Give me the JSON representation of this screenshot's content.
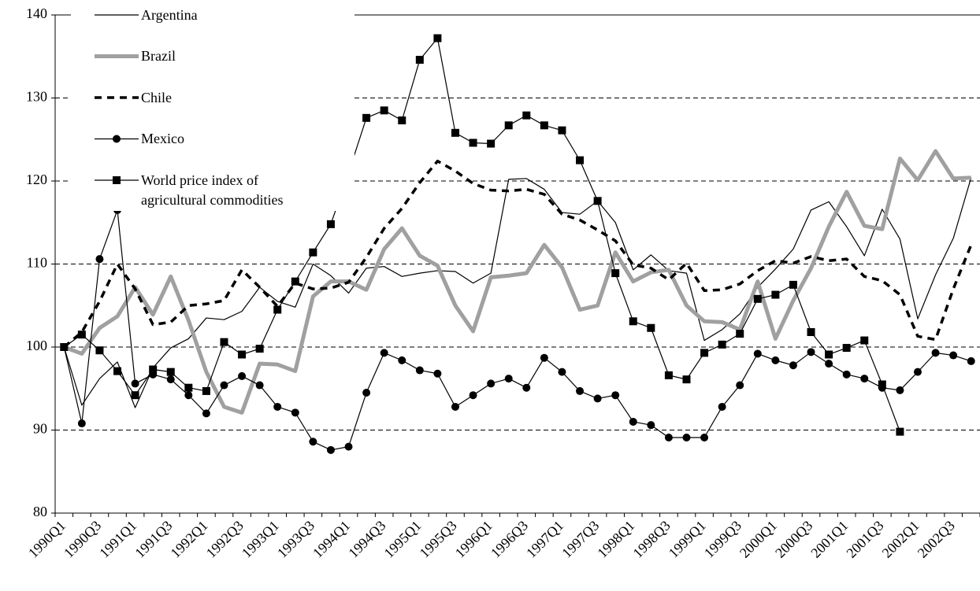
{
  "chart_data": {
    "type": "line",
    "categories": [
      "1990Q1",
      null,
      "1990Q3",
      null,
      "1991Q1",
      null,
      "1991Q3",
      null,
      "1992Q1",
      null,
      "1992Q3",
      null,
      "1993Q1",
      null,
      "1993Q3",
      null,
      "1994Q1",
      null,
      "1994Q3",
      null,
      "1995Q1",
      null,
      "1995Q3",
      null,
      "1996Q1",
      null,
      "1996Q3",
      null,
      "1997Q1",
      null,
      "1997Q3",
      null,
      "1998Q1",
      null,
      "1998Q3",
      null,
      "1999Q1",
      null,
      "1999Q3",
      null,
      "2000Q1",
      null,
      "2000Q3",
      null,
      "2001Q1",
      null,
      "2001Q3",
      null,
      "2002Q1",
      null,
      "2002Q3",
      null
    ],
    "ylim": [
      80,
      140
    ],
    "yticks": [
      80,
      90,
      100,
      110,
      120,
      130,
      140
    ],
    "grid": true,
    "legend": "upper left",
    "series": [
      {
        "name": "Argentina",
        "color": "#000000",
        "width": 1.2,
        "dash": "none",
        "marker": "none",
        "values": [
          100,
          93,
          96.2,
          98.2,
          92.7,
          97.5,
          99.9,
          101,
          103.5,
          103.3,
          104.3,
          107.2,
          105.5,
          104.8,
          110,
          108.6,
          106.5,
          109.5,
          109.7,
          108.5,
          108.9,
          109.2,
          109.1,
          107.7,
          108.9,
          120.2,
          120.3,
          119,
          116.2,
          116,
          117.6,
          115,
          109.3,
          111.1,
          109.2,
          108.9,
          100.8,
          102.1,
          104,
          107.2,
          109.4,
          111.8,
          116.5,
          117.5,
          114.5,
          111,
          116.6,
          113,
          103.4,
          108.7,
          113.1,
          120.4
        ]
      },
      {
        "name": "Brazil",
        "color": "#a0a0a0",
        "width": 5,
        "dash": "none",
        "marker": "none",
        "values": [
          100,
          99.2,
          102.3,
          103.7,
          107.2,
          103.9,
          108.5,
          103.2,
          97,
          92.8,
          92.1,
          98,
          97.9,
          97.1,
          106.1,
          107.9,
          107.9,
          106.9,
          111.8,
          114.3,
          111,
          109.8,
          105,
          101.9,
          108.4,
          108.6,
          108.9,
          112.3,
          109.6,
          104.5,
          105,
          111.4,
          107.9,
          109,
          109.3,
          105,
          103.1,
          103,
          102.1,
          107.9,
          101,
          105.6,
          109.5,
          114.5,
          118.7,
          114.6,
          114.2,
          122.7,
          120.1,
          123.6,
          120.3,
          120.4
        ]
      },
      {
        "name": "Chile",
        "color": "#000000",
        "width": 3.5,
        "dash": "9 7",
        "marker": "none",
        "values": [
          100,
          101.8,
          105.5,
          110,
          107,
          102.7,
          103,
          105,
          105.2,
          105.6,
          109.3,
          107.2,
          104.9,
          107.7,
          107,
          107.1,
          107.8,
          110.8,
          114.3,
          116.7,
          119.8,
          122.4,
          121.2,
          119.7,
          118.9,
          118.8,
          119,
          118.4,
          116,
          115.3,
          114.1,
          112.8,
          109.9,
          109.5,
          108.1,
          110.1,
          106.8,
          106.9,
          107.6,
          109.2,
          110.4,
          110.1,
          110.9,
          110.4,
          110.6,
          108.5,
          108,
          106.3,
          101.3,
          100.9,
          107,
          112.3
        ]
      },
      {
        "name": "Mexico",
        "color": "#000000",
        "width": 1.2,
        "dash": "none",
        "marker": "circle",
        "values": [
          100,
          90.8,
          110.6,
          116.5,
          95.6,
          96.7,
          96.1,
          94.2,
          92,
          95.4,
          96.5,
          95.4,
          92.8,
          92.1,
          88.6,
          87.6,
          88,
          94.5,
          99.3,
          98.4,
          97.2,
          96.8,
          92.8,
          94.2,
          95.6,
          96.2,
          95.1,
          98.7,
          97,
          94.7,
          93.8,
          94.2,
          91,
          90.6,
          89.1,
          89.1,
          89.1,
          92.8,
          95.4,
          99.2,
          98.4,
          97.8,
          99.4,
          98,
          96.7,
          96.2,
          95.1,
          94.8,
          97,
          99.3,
          99,
          98.3
        ]
      },
      {
        "name": "World price index of agricultural commodities",
        "color": "#000000",
        "width": 1.2,
        "dash": "none",
        "marker": "square",
        "values": [
          100,
          101.5,
          99.6,
          97.1,
          94.2,
          97.3,
          97,
          95.1,
          94.7,
          100.6,
          99.1,
          99.8,
          104.5,
          107.9,
          111.4,
          114.8,
          121,
          127.6,
          128.5,
          127.3,
          134.6,
          137.2,
          125.8,
          124.6,
          124.5,
          126.7,
          127.9,
          126.7,
          126.1,
          122.5,
          117.6,
          108.9,
          103.1,
          102.3,
          96.6,
          96.1,
          99.3,
          100.3,
          101.6,
          105.8,
          106.3,
          107.5,
          101.8,
          99.1,
          99.9,
          100.8,
          95.5,
          89.8,
          null,
          null,
          null,
          null
        ]
      }
    ]
  }
}
